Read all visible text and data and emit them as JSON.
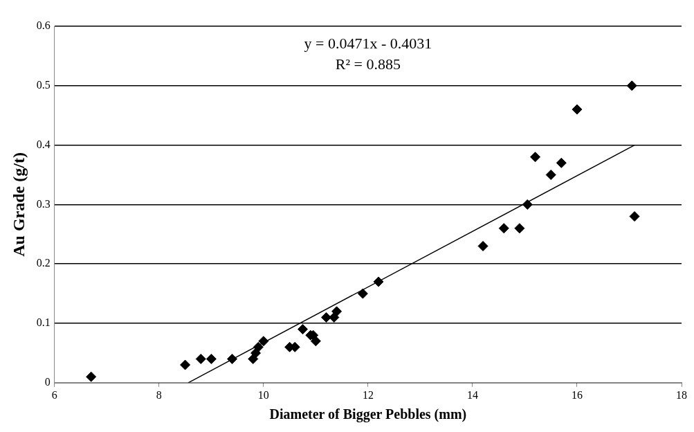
{
  "chart_data": {
    "type": "scatter",
    "xlabel": "Diameter of Bigger Pebbles (mm)",
    "ylabel": "Au Grade (g/t)",
    "xlim": [
      6,
      18
    ],
    "xticks": [
      6,
      8,
      10,
      12,
      14,
      16,
      18
    ],
    "ylim": [
      0,
      0.6
    ],
    "yticks": [
      0,
      0.1,
      0.2,
      0.3,
      0.4,
      0.5,
      0.6
    ],
    "grid": "y",
    "legend": false,
    "marker": "diamond",
    "annotations": [
      "y = 0.0471x - 0.4031",
      "R² = 0.885"
    ],
    "series": [
      {
        "type": "scatter",
        "color": "#000000",
        "x": [
          6.7,
          8.5,
          8.8,
          9.0,
          9.4,
          9.8,
          9.85,
          9.9,
          10.0,
          10.5,
          10.6,
          10.75,
          10.9,
          10.95,
          11.0,
          11.2,
          11.35,
          11.4,
          11.9,
          12.2,
          14.2,
          14.6,
          14.9,
          15.05,
          15.2,
          15.5,
          15.7,
          16.0,
          17.05,
          17.1
        ],
        "values": [
          0.01,
          0.03,
          0.04,
          0.04,
          0.04,
          0.04,
          0.05,
          0.06,
          0.07,
          0.06,
          0.06,
          0.09,
          0.08,
          0.08,
          0.07,
          0.11,
          0.11,
          0.12,
          0.15,
          0.17,
          0.23,
          0.26,
          0.26,
          0.3,
          0.38,
          0.35,
          0.37,
          0.46,
          0.5,
          0.28
        ]
      },
      {
        "type": "line",
        "color": "#000000",
        "marker": "none",
        "x": [
          8.56,
          17.1
        ],
        "values": [
          0,
          0.4
        ]
      }
    ]
  }
}
